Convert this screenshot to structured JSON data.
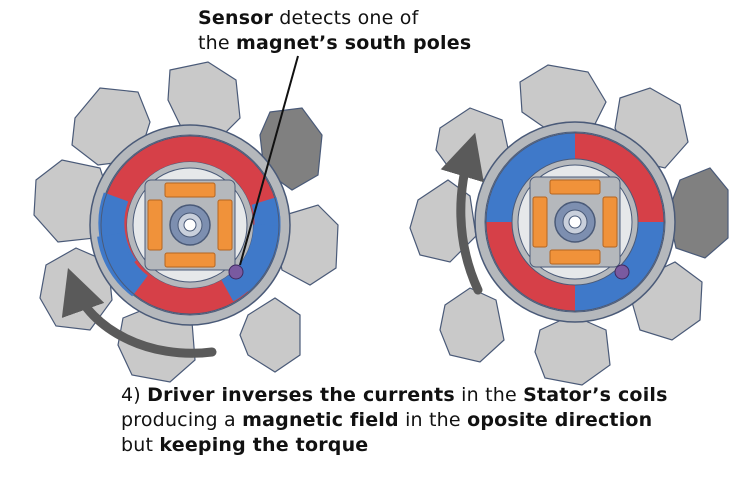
{
  "sensor_caption": {
    "line1_bold": "Sensor",
    "line1_rest": " detects one of",
    "line2_pre": "the ",
    "line2_bold": "magnet’s south poles"
  },
  "step_note": {
    "step": "4) ",
    "l1_bold_a": "Driver inverses the currents",
    "l1_mid": " in the ",
    "l1_bold_b": "Stator’s coils",
    "l2_pre": "producing a ",
    "l2_bold_a": "magnetic field",
    "l2_mid": " in the ",
    "l2_bold_b": "oposite direction",
    "l3_pre": "but ",
    "l3_bold": "keeping the torque"
  },
  "colors": {
    "pole_red": "#d64048",
    "pole_blue": "#3f79c9",
    "coil_orange": "#f0923a",
    "core_gray": "#b5b8bc",
    "stator_block": "#c9c9c9",
    "stator_block_active": "#808080",
    "sensor_purple": "#7a5aa0",
    "arrow_gray": "#5a5a5a",
    "outline": "#4a5a78"
  }
}
